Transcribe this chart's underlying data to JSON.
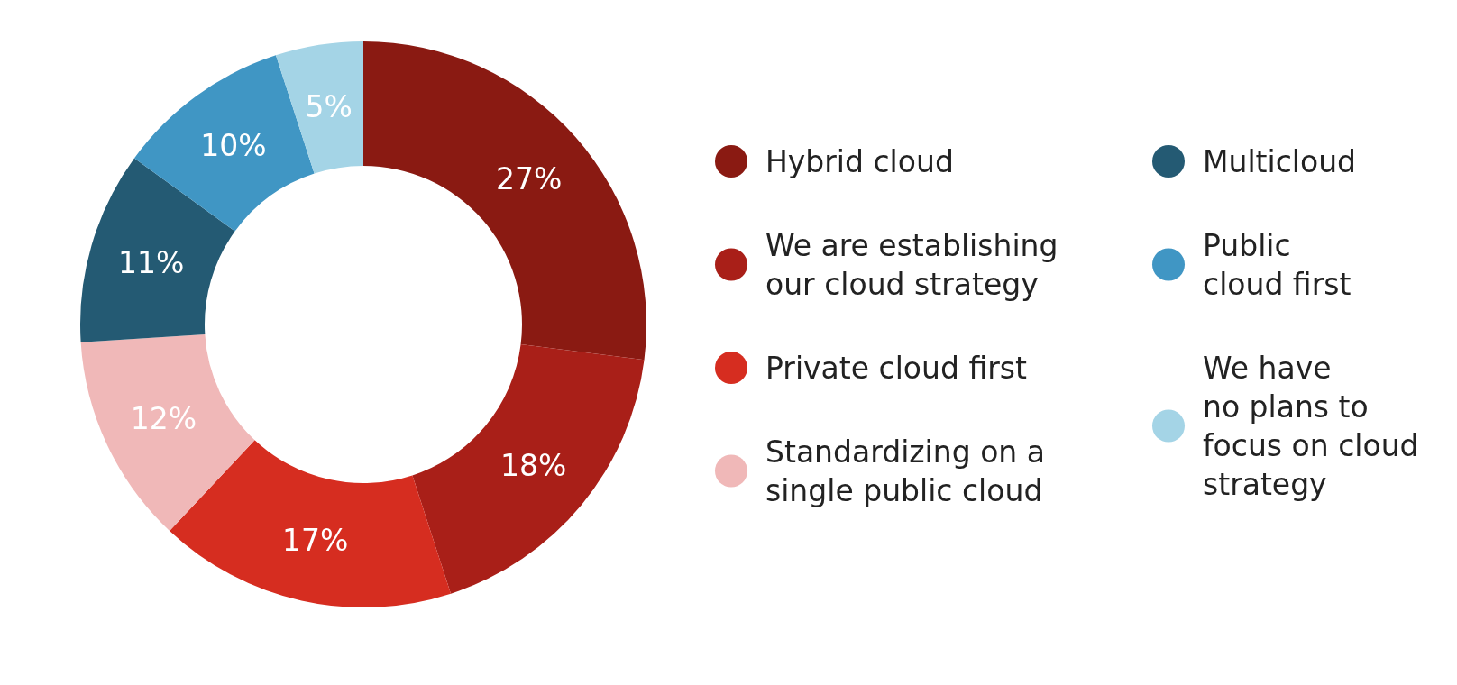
{
  "chart_data": {
    "type": "donut",
    "categories": [
      "Hybrid cloud",
      "We are establishing\nour cloud strategy",
      "Private cloud first",
      "Standardizing on a\nsingle public cloud",
      "Multicloud",
      "Public\ncloud first",
      "We have\nno plans to\nfocus on cloud\nstrategy"
    ],
    "values": [
      27,
      18,
      17,
      12,
      11,
      10,
      5
    ],
    "colors": [
      "#8a1a12",
      "#a91f18",
      "#d62d20",
      "#f0b8b8",
      "#245a73",
      "#4096c4",
      "#a4d4e6"
    ],
    "value_labels": [
      "27%",
      "18%",
      "17%",
      "12%",
      "11%",
      "10%",
      "5%"
    ],
    "legend": "right"
  }
}
